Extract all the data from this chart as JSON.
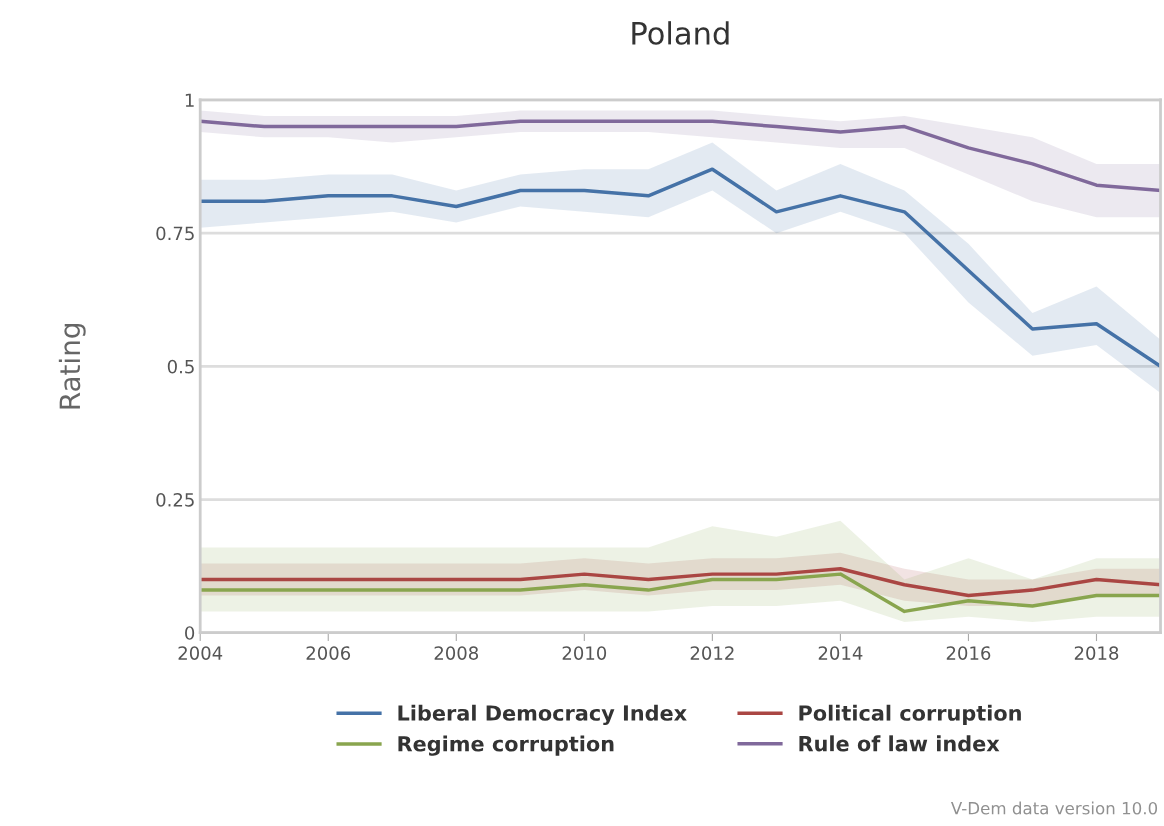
{
  "chart_data": {
    "type": "line",
    "title": "Poland",
    "ylabel": "Rating",
    "x": [
      2004,
      2005,
      2006,
      2007,
      2008,
      2009,
      2010,
      2011,
      2012,
      2013,
      2014,
      2015,
      2016,
      2017,
      2018,
      2019
    ],
    "xlim": [
      2004,
      2019
    ],
    "xticks": [
      2004,
      2006,
      2008,
      2010,
      2012,
      2014,
      2016,
      2018
    ],
    "ylim": [
      0,
      1
    ],
    "yticks": [
      0,
      0.25,
      0.5,
      0.75,
      1
    ],
    "grid": "y",
    "legend": "bottom",
    "marker": "none",
    "line_style": "solid",
    "series": [
      {
        "name": "Liberal Democracy Index",
        "color": "#4572a7",
        "values": [
          0.81,
          0.81,
          0.82,
          0.82,
          0.8,
          0.83,
          0.83,
          0.82,
          0.87,
          0.79,
          0.82,
          0.79,
          0.68,
          0.57,
          0.58,
          0.5
        ],
        "lower": [
          0.76,
          0.77,
          0.78,
          0.79,
          0.77,
          0.8,
          0.79,
          0.78,
          0.83,
          0.75,
          0.79,
          0.75,
          0.62,
          0.52,
          0.54,
          0.45
        ],
        "upper": [
          0.85,
          0.85,
          0.86,
          0.86,
          0.83,
          0.86,
          0.87,
          0.87,
          0.92,
          0.83,
          0.88,
          0.83,
          0.73,
          0.6,
          0.65,
          0.55
        ]
      },
      {
        "name": "Political corruption",
        "color": "#aa4643",
        "values": [
          0.1,
          0.1,
          0.1,
          0.1,
          0.1,
          0.1,
          0.11,
          0.1,
          0.11,
          0.11,
          0.12,
          0.09,
          0.07,
          0.08,
          0.1,
          0.09
        ],
        "lower": [
          0.07,
          0.07,
          0.07,
          0.07,
          0.07,
          0.07,
          0.08,
          0.07,
          0.08,
          0.08,
          0.09,
          0.06,
          0.05,
          0.05,
          0.07,
          0.07
        ],
        "upper": [
          0.13,
          0.13,
          0.13,
          0.13,
          0.13,
          0.13,
          0.14,
          0.13,
          0.14,
          0.14,
          0.15,
          0.12,
          0.1,
          0.1,
          0.12,
          0.12
        ]
      },
      {
        "name": "Regime corruption",
        "color": "#89a54e",
        "values": [
          0.08,
          0.08,
          0.08,
          0.08,
          0.08,
          0.08,
          0.09,
          0.08,
          0.1,
          0.1,
          0.11,
          0.04,
          0.06,
          0.05,
          0.07,
          0.07
        ],
        "lower": [
          0.04,
          0.04,
          0.04,
          0.04,
          0.04,
          0.04,
          0.04,
          0.04,
          0.05,
          0.05,
          0.06,
          0.02,
          0.03,
          0.02,
          0.03,
          0.03
        ],
        "upper": [
          0.16,
          0.16,
          0.16,
          0.16,
          0.16,
          0.16,
          0.16,
          0.16,
          0.2,
          0.18,
          0.21,
          0.1,
          0.14,
          0.1,
          0.14,
          0.14
        ]
      },
      {
        "name": "Rule of law index",
        "color": "#80699b",
        "values": [
          0.96,
          0.95,
          0.95,
          0.95,
          0.95,
          0.96,
          0.96,
          0.96,
          0.96,
          0.95,
          0.94,
          0.95,
          0.91,
          0.88,
          0.84,
          0.83
        ],
        "lower": [
          0.94,
          0.93,
          0.93,
          0.92,
          0.93,
          0.94,
          0.94,
          0.94,
          0.93,
          0.92,
          0.91,
          0.91,
          0.86,
          0.81,
          0.78,
          0.78
        ],
        "upper": [
          0.98,
          0.97,
          0.97,
          0.97,
          0.97,
          0.98,
          0.98,
          0.98,
          0.98,
          0.97,
          0.96,
          0.97,
          0.95,
          0.93,
          0.88,
          0.88
        ]
      }
    ],
    "annotations": [
      "V-Dem data version 10.0"
    ]
  }
}
